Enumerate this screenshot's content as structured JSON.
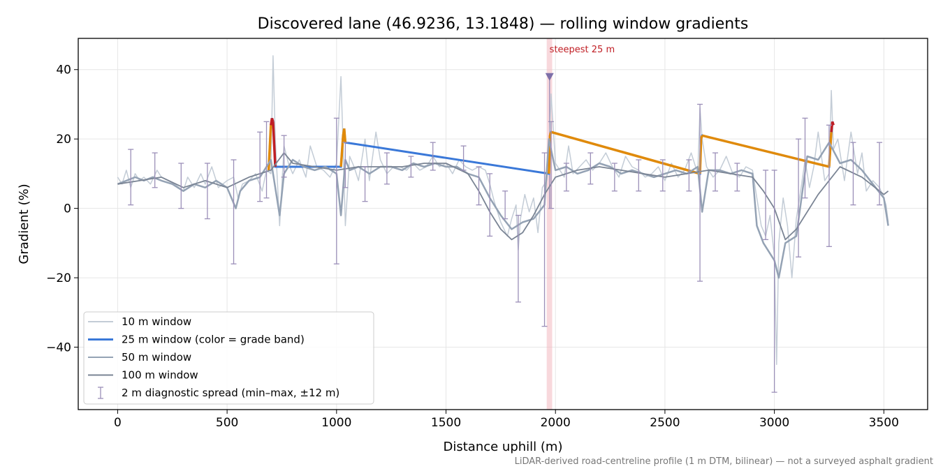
{
  "chart_data": {
    "type": "line",
    "title": "Discovered lane (46.9236, 13.1848) — rolling window gradients",
    "xlabel": "Distance uphill (m)",
    "ylabel": "Gradient (%)",
    "xlim": [
      -180,
      3700
    ],
    "ylim": [
      -58,
      49
    ],
    "xticks": [
      0,
      500,
      1000,
      1500,
      2000,
      2500,
      3000,
      3500
    ],
    "yticks": [
      -40,
      -20,
      0,
      20,
      40
    ],
    "xtick_labels": [
      "0",
      "500",
      "1000",
      "1500",
      "2000",
      "2500",
      "3000",
      "3500"
    ],
    "ytick_labels": [
      "−40",
      "−20",
      "0",
      "20",
      "40"
    ],
    "grid": true,
    "legend_position": "lower-left",
    "footnote": "LiDAR-derived road-centreline profile (1 m DTM, bilinear) — not a surveyed asphalt gradient",
    "highlight": {
      "x_from": 1960,
      "x_to": 1985,
      "label": "steepest 25 m",
      "marker_x": 1973,
      "marker_y": 38
    },
    "series": [
      {
        "name": "10 m window",
        "color": "#c3ccd6",
        "x": [
          0,
          20,
          40,
          60,
          80,
          100,
          120,
          150,
          180,
          200,
          230,
          260,
          300,
          320,
          350,
          380,
          400,
          430,
          460,
          500,
          530,
          550,
          570,
          600,
          630,
          660,
          680,
          700,
          710,
          720,
          740,
          760,
          780,
          800,
          830,
          860,
          880,
          910,
          940,
          970,
          1000,
          1020,
          1030,
          1040,
          1060,
          1080,
          1100,
          1130,
          1150,
          1180,
          1200,
          1230,
          1260,
          1290,
          1320,
          1350,
          1380,
          1410,
          1440,
          1470,
          1500,
          1530,
          1560,
          1590,
          1620,
          1650,
          1680,
          1700,
          1720,
          1750,
          1780,
          1800,
          1820,
          1830,
          1840,
          1860,
          1880,
          1900,
          1920,
          1940,
          1960,
          1970,
          1980,
          2000,
          2020,
          2040,
          2060,
          2080,
          2110,
          2140,
          2170,
          2200,
          2230,
          2260,
          2290,
          2320,
          2350,
          2380,
          2410,
          2440,
          2470,
          2500,
          2530,
          2560,
          2590,
          2620,
          2650,
          2660,
          2670,
          2690,
          2720,
          2750,
          2780,
          2810,
          2840,
          2870,
          2900,
          2920,
          2940,
          2960,
          2980,
          3000,
          3010,
          3020,
          3040,
          3060,
          3080,
          3100,
          3120,
          3140,
          3160,
          3180,
          3200,
          3230,
          3250,
          3260,
          3270,
          3290,
          3320,
          3350,
          3380,
          3400,
          3420,
          3450,
          3480,
          3500,
          3510,
          3520
        ],
        "y": [
          9,
          7,
          11,
          6,
          10,
          8,
          9,
          7,
          11,
          9,
          8,
          7,
          5,
          9,
          6,
          10,
          7,
          12,
          6,
          8,
          9,
          3,
          7,
          8,
          10,
          5,
          11,
          10,
          44,
          20,
          -5,
          18,
          13,
          10,
          14,
          9,
          18,
          12,
          11,
          9,
          13,
          38,
          18,
          -5,
          15,
          12,
          8,
          20,
          8,
          22,
          14,
          10,
          12,
          12,
          11,
          13,
          11,
          12,
          15,
          12,
          13,
          10,
          14,
          12,
          11,
          12,
          11,
          7,
          2,
          -4,
          -8,
          -3,
          1,
          -12,
          -3,
          4,
          -1,
          3,
          -7,
          6,
          8,
          12,
          33,
          13,
          11,
          9,
          18,
          10,
          12,
          14,
          11,
          13,
          16,
          12,
          9,
          15,
          12,
          11,
          9,
          10,
          12,
          8,
          13,
          9,
          11,
          16,
          10,
          29,
          20,
          12,
          9,
          11,
          15,
          10,
          9,
          12,
          11,
          3,
          -5,
          -8,
          -2,
          -14,
          -45,
          -10,
          3,
          -5,
          -20,
          -3,
          5,
          14,
          6,
          12,
          22,
          8,
          10,
          34,
          17,
          20,
          8,
          22,
          10,
          16,
          5,
          8,
          6,
          3,
          1,
          -4
        ]
      },
      {
        "name": "25 m window (color = grade band)",
        "color": "#3a78d8",
        "band_colors": {
          "8-15": "#3a78d8",
          "20-25": "#e08a0a",
          "25+": "#c01e24"
        },
        "x": [
          690,
          700,
          705,
          710,
          720,
          1020,
          1030,
          1035,
          1040,
          1970,
          1975,
          1980,
          2660,
          2665,
          2670,
          3250,
          3260,
          3265,
          3270
        ],
        "y": [
          11,
          24,
          26,
          25,
          12,
          12,
          21,
          23,
          19,
          10,
          21,
          22,
          10,
          20,
          21,
          12,
          22,
          25,
          24
        ]
      },
      {
        "name": "50 m window",
        "color": "#94a2b4",
        "x": [
          0,
          40,
          80,
          120,
          160,
          200,
          250,
          300,
          350,
          400,
          450,
          500,
          540,
          560,
          600,
          650,
          700,
          740,
          760,
          800,
          850,
          900,
          950,
          1000,
          1020,
          1040,
          1060,
          1100,
          1150,
          1200,
          1250,
          1300,
          1350,
          1400,
          1450,
          1500,
          1550,
          1600,
          1650,
          1700,
          1750,
          1800,
          1850,
          1900,
          1950,
          1970,
          2000,
          2050,
          2100,
          2150,
          2200,
          2250,
          2300,
          2350,
          2400,
          2450,
          2500,
          2550,
          2600,
          2650,
          2670,
          2700,
          2750,
          2800,
          2850,
          2900,
          2920,
          2950,
          3000,
          3020,
          3050,
          3100,
          3150,
          3200,
          3250,
          3300,
          3350,
          3400,
          3450,
          3500,
          3520
        ],
        "y": [
          7,
          8,
          9,
          8,
          9,
          8,
          7,
          5,
          7,
          6,
          8,
          6,
          0,
          5,
          8,
          9,
          14,
          -2,
          10,
          14,
          12,
          11,
          12,
          10,
          -2,
          14,
          11,
          12,
          10,
          12,
          12,
          11,
          13,
          12,
          13,
          12,
          12,
          10,
          9,
          3,
          -2,
          -6,
          -4,
          -3,
          1,
          20,
          11,
          12,
          10,
          11,
          13,
          12,
          10,
          11,
          10,
          9,
          10,
          11,
          10,
          12,
          -1,
          11,
          11,
          10,
          11,
          10,
          -5,
          -10,
          -15,
          -20,
          -10,
          -8,
          15,
          14,
          19,
          13,
          14,
          11,
          7,
          3,
          -5
        ]
      },
      {
        "name": "100 m window",
        "color": "#7a8494",
        "x": [
          0,
          100,
          200,
          300,
          400,
          500,
          600,
          700,
          760,
          800,
          900,
          1000,
          1100,
          1200,
          1300,
          1400,
          1500,
          1600,
          1650,
          1700,
          1750,
          1800,
          1850,
          1900,
          1950,
          2000,
          2100,
          2200,
          2300,
          2400,
          2500,
          2600,
          2700,
          2800,
          2900,
          2950,
          3000,
          3050,
          3100,
          3200,
          3300,
          3400,
          3500,
          3520
        ],
        "y": [
          7,
          8,
          9,
          6,
          8,
          6,
          9,
          11,
          16,
          13,
          12,
          11,
          12,
          12,
          12,
          13,
          13,
          10,
          5,
          -1,
          -6,
          -9,
          -7,
          -2,
          4,
          9,
          11,
          12,
          11,
          10,
          9,
          10,
          11,
          10,
          9,
          5,
          0,
          -9,
          -6,
          4,
          12,
          9,
          4,
          5
        ]
      },
      {
        "name": "2 m diagnostic spread (min–max, ±12 m)",
        "color": "#9b8fb8",
        "type": "errorbar",
        "x": [
          60,
          170,
          290,
          410,
          530,
          650,
          680,
          760,
          1000,
          1040,
          1130,
          1230,
          1340,
          1440,
          1580,
          1650,
          1700,
          1770,
          1830,
          1950,
          1980,
          2050,
          2160,
          2270,
          2380,
          2490,
          2610,
          2660,
          2730,
          2830,
          2960,
          3000,
          3110,
          3140,
          3250,
          3360,
          3480
        ],
        "lo": [
          1,
          6,
          0,
          -3,
          -16,
          2,
          3,
          9,
          -16,
          6,
          2,
          7,
          9,
          11,
          11,
          1,
          -8,
          -3,
          -27,
          -34,
          0,
          5,
          7,
          5,
          5,
          5,
          5,
          -21,
          5,
          5,
          -9,
          -53,
          -14,
          3,
          -11,
          1,
          1
        ],
        "hi": [
          17,
          16,
          13,
          13,
          14,
          22,
          25,
          21,
          26,
          19,
          12,
          16,
          15,
          19,
          18,
          12,
          10,
          5,
          -2,
          16,
          25,
          13,
          16,
          13,
          14,
          14,
          14,
          30,
          16,
          13,
          11,
          11,
          20,
          26,
          24,
          19,
          19
        ]
      }
    ]
  }
}
